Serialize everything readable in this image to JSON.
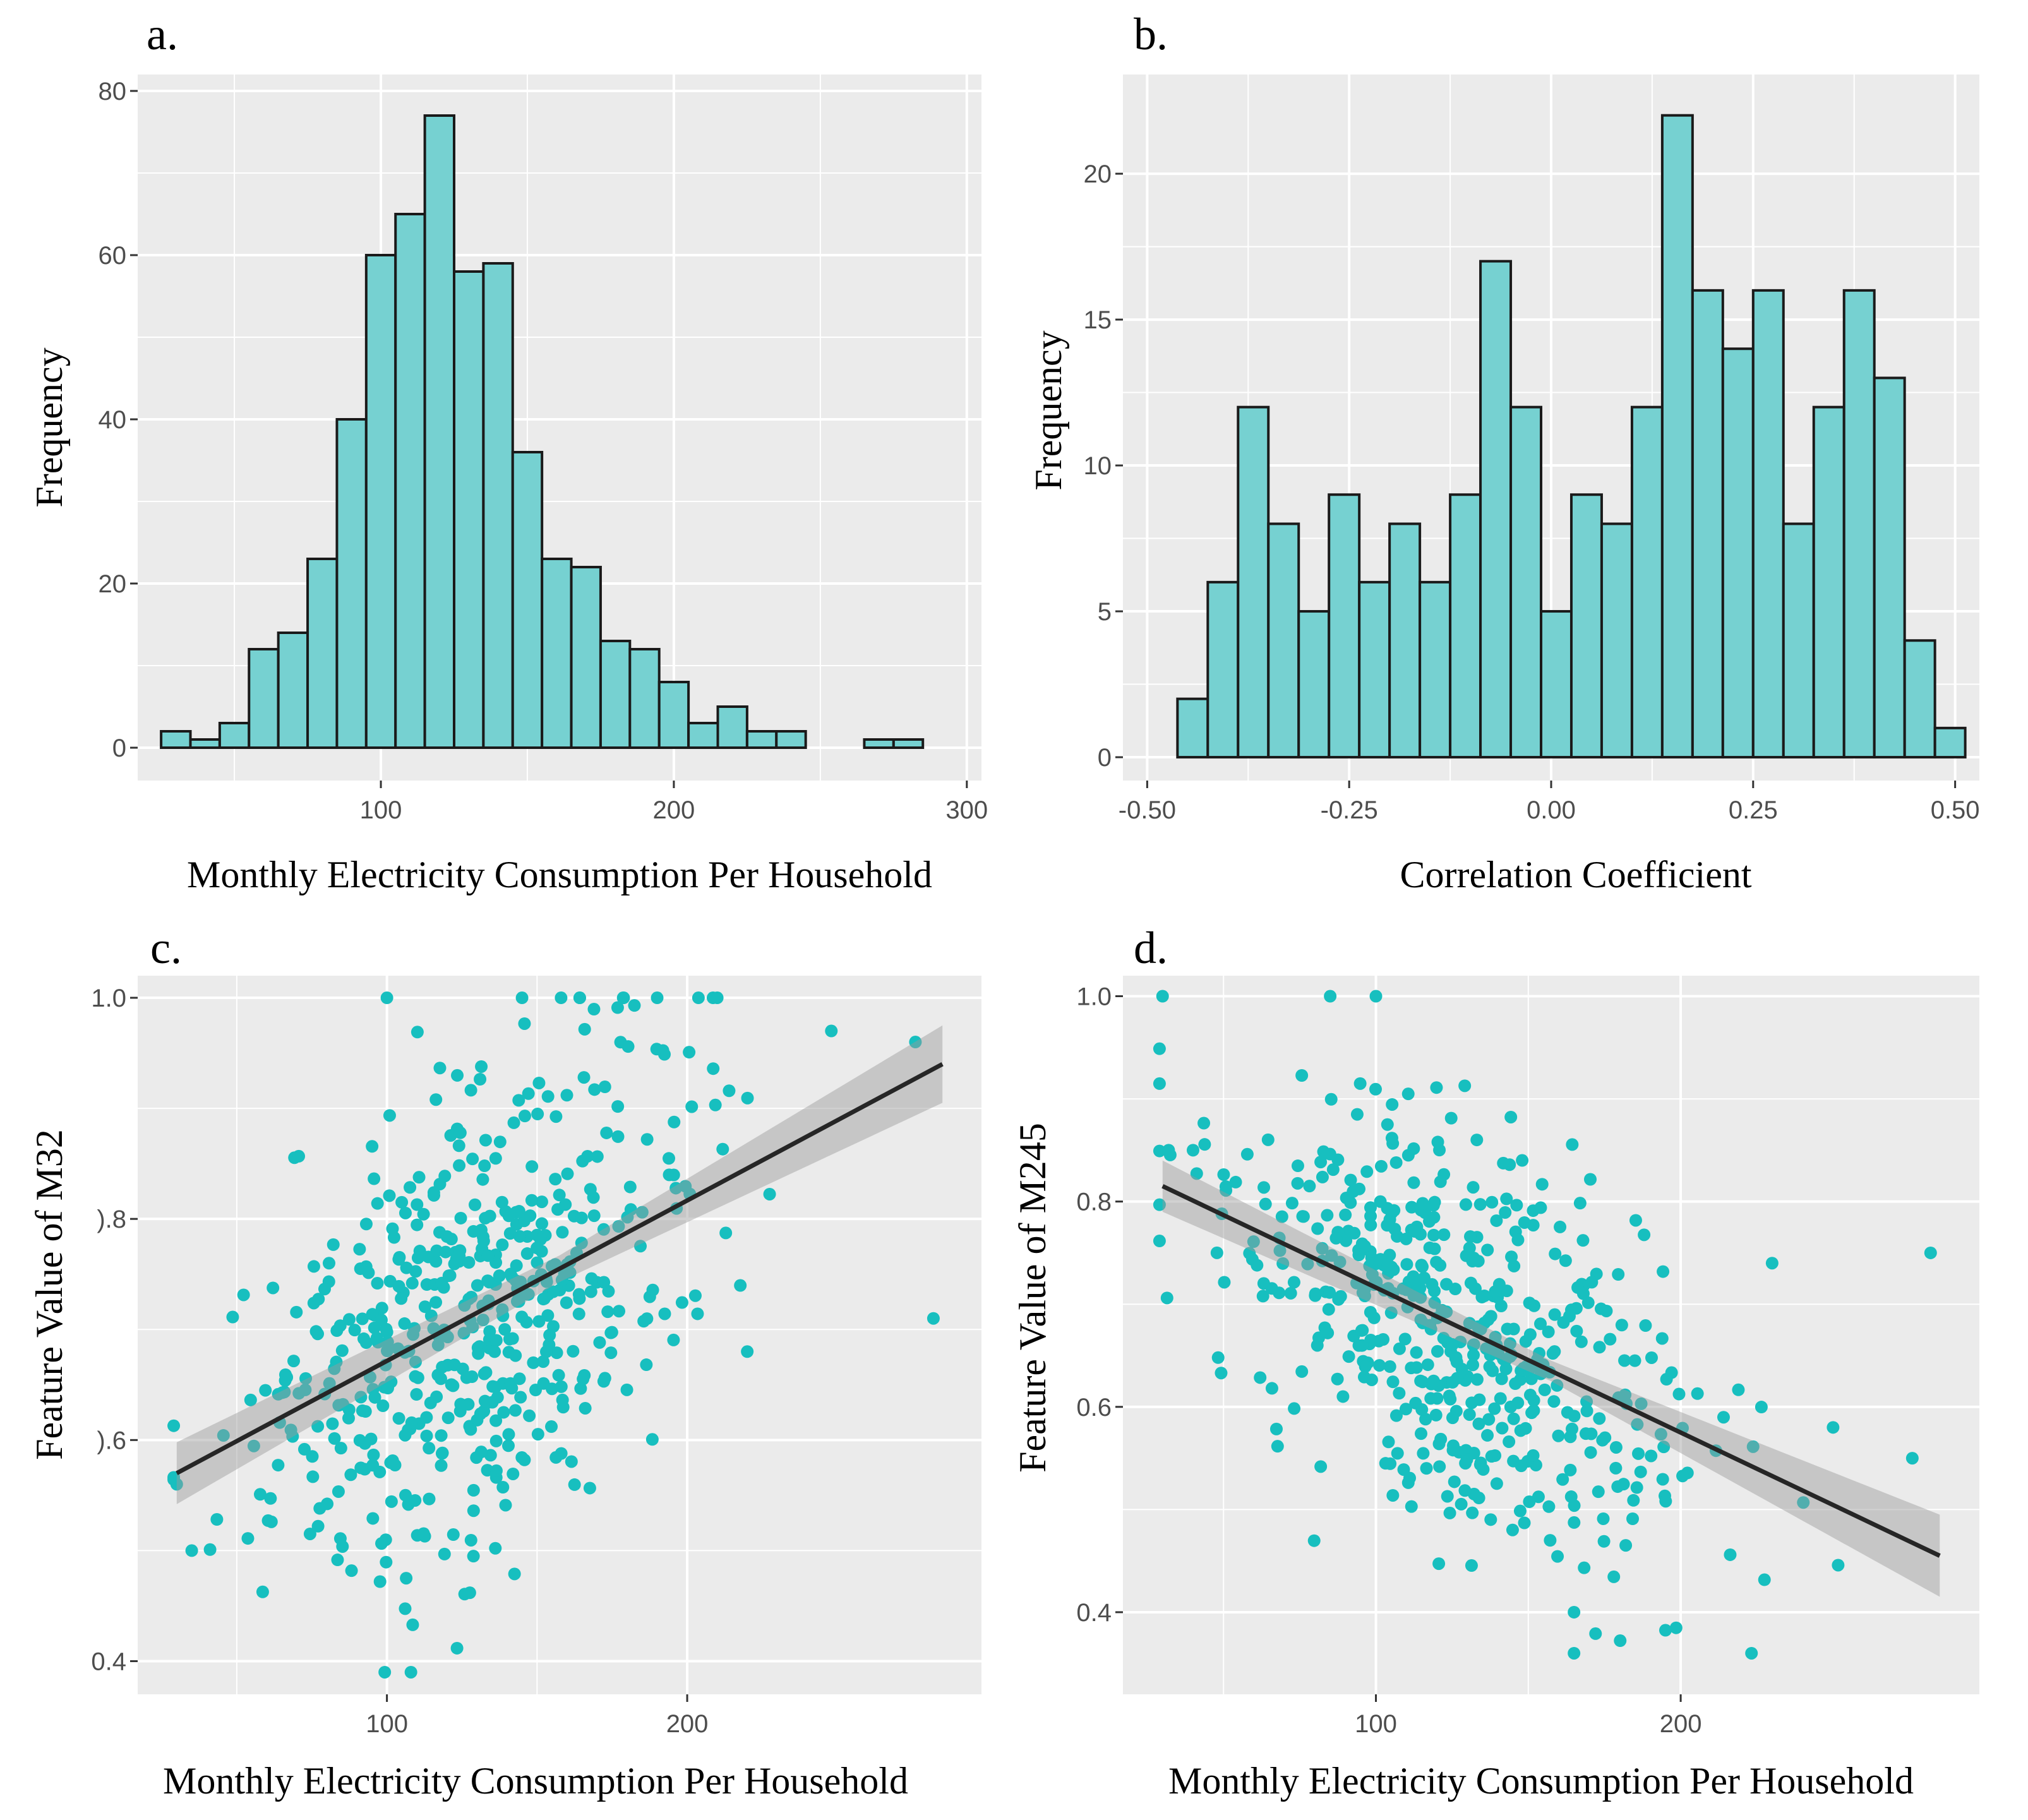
{
  "chart_data": [
    {
      "panel": "a.",
      "type": "bar",
      "title": "",
      "xlabel": "Monthly  Electricity  Consumption  Per Household",
      "ylabel": "Frequency",
      "xlim": [
        17,
        305
      ],
      "ylim": [
        -4,
        82
      ],
      "xticks": [
        100,
        200,
        300
      ],
      "yticks": [
        0,
        20,
        40,
        60,
        80
      ],
      "bins": {
        "start": 25,
        "width": 10,
        "values": [
          2,
          1,
          3,
          12,
          14,
          23,
          40,
          60,
          65,
          77,
          58,
          59,
          36,
          23,
          22,
          13,
          12,
          8,
          3,
          5,
          2,
          2,
          0,
          0,
          1,
          1
        ]
      }
    },
    {
      "panel": "b.",
      "type": "bar",
      "title": "",
      "xlabel": "Correlation  Coefficient",
      "ylabel": "Frequency",
      "xlim": [
        -0.53,
        0.53
      ],
      "ylim": [
        -0.8,
        23.4
      ],
      "xticks": [
        -0.5,
        -0.25,
        0.0,
        0.25,
        0.5
      ],
      "xtick_labels": [
        "-0.50",
        "-0.25",
        "0.00",
        "0.25",
        "0.50"
      ],
      "yticks": [
        0,
        5,
        10,
        15,
        20
      ],
      "bins": {
        "start": -0.4625,
        "width": 0.0375,
        "values": [
          2,
          6,
          12,
          8,
          5,
          9,
          6,
          8,
          6,
          9,
          17,
          12,
          5,
          9,
          8,
          12,
          22,
          16,
          14,
          16,
          8,
          12,
          16,
          13,
          4,
          1
        ]
      }
    },
    {
      "panel": "c.",
      "type": "scatter",
      "title": "",
      "xlabel": "Monthly  Electricity  Consumption  Per Household",
      "ylabel": "Feature  Value of M32",
      "xlim": [
        17,
        298
      ],
      "ylim": [
        0.37,
        1.02
      ],
      "xticks": [
        100,
        200
      ],
      "yticks": [
        0.4,
        0.6,
        0.8,
        1.0
      ],
      "ytick_labels": [
        "0.4",
        ").6",
        ").8",
        "1.0"
      ],
      "trend": {
        "x": [
          30,
          285
        ],
        "y": [
          0.57,
          0.94
        ],
        "ci_start": 0.028,
        "ci_mid": 0.012,
        "ci_end": 0.035
      },
      "points": {
        "n": 520,
        "seed": 32,
        "mean_x": 125,
        "sd_x": 38,
        "slope": 0.00145,
        "intercept": 0.526,
        "noise": 0.105,
        "ymin": 0.39,
        "ymax": 1.0,
        "extra": [
          [
            100,
            1.0
          ],
          [
            145,
            1.0
          ],
          [
            158,
            1.0
          ],
          [
            190,
            1.0
          ],
          [
            210,
            1.0
          ],
          [
            108,
            0.39
          ],
          [
            282,
            0.71
          ],
          [
            276,
            0.96
          ],
          [
            248,
            0.97
          ],
          [
            220,
            0.68
          ],
          [
            30,
            0.56
          ],
          [
            35,
            0.5
          ]
        ]
      }
    },
    {
      "panel": "d.",
      "type": "scatter",
      "title": "",
      "xlabel": "Monthly  Electricity  Consumption  Per Household",
      "ylabel": "Feature  Value of M245",
      "xlim": [
        17,
        298
      ],
      "ylim": [
        0.32,
        1.02
      ],
      "xticks": [
        100,
        200
      ],
      "yticks": [
        0.4,
        0.6,
        0.8,
        1.0
      ],
      "ytick_labels": [
        "0.4",
        "0.6",
        "0.8",
        "1.0"
      ],
      "trend": {
        "x": [
          30,
          285
        ],
        "y": [
          0.815,
          0.455
        ],
        "ci_start": 0.025,
        "ci_mid": 0.01,
        "ci_end": 0.04
      },
      "points": {
        "n": 520,
        "seed": 245,
        "mean_x": 125,
        "sd_x": 38,
        "slope": -0.00141,
        "intercept": 0.857,
        "noise": 0.095,
        "ymin": 0.36,
        "ymax": 1.0,
        "extra": [
          [
            30,
            1.0
          ],
          [
            85,
            1.0
          ],
          [
            100,
            1.0
          ],
          [
            32,
            0.85
          ],
          [
            40,
            0.85
          ],
          [
            282,
            0.75
          ],
          [
            276,
            0.55
          ],
          [
            165,
            0.36
          ],
          [
            165,
            0.4
          ],
          [
            250,
            0.58
          ],
          [
            230,
            0.74
          ]
        ]
      }
    }
  ]
}
